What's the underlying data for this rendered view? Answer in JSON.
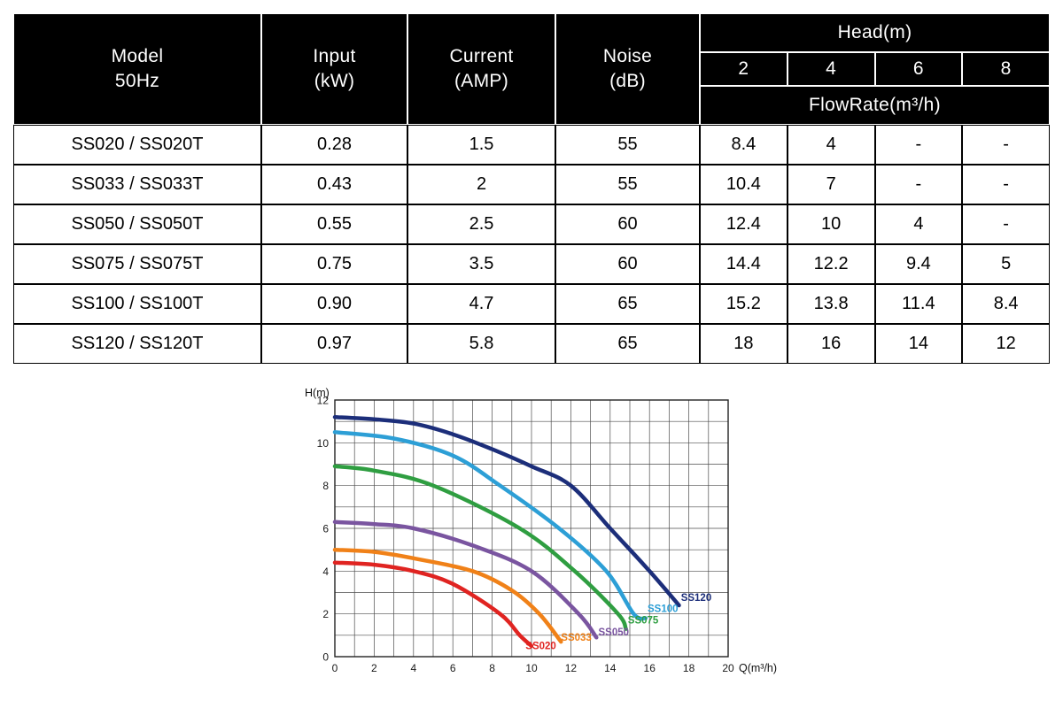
{
  "table": {
    "header": {
      "model_line1": "Model",
      "model_line2": "50Hz",
      "input_line1": "Input",
      "input_line2": "(kW)",
      "current_line1": "Current",
      "current_line2": "(AMP)",
      "noise_line1": "Noise",
      "noise_line2": "(dB)",
      "head_label": "Head(m)",
      "head_values": [
        "2",
        "4",
        "6",
        "8"
      ],
      "flowrate_label": "FlowRate(m³/h)"
    },
    "rows": [
      {
        "model": "SS020 / SS020T",
        "input_kw": "0.28",
        "current_amp": "1.5",
        "noise_db": "55",
        "flow_rates": [
          "8.4",
          "4",
          "-",
          "-"
        ]
      },
      {
        "model": "SS033 / SS033T",
        "input_kw": "0.43",
        "current_amp": "2",
        "noise_db": "55",
        "flow_rates": [
          "10.4",
          "7",
          "-",
          "-"
        ]
      },
      {
        "model": "SS050 / SS050T",
        "input_kw": "0.55",
        "current_amp": "2.5",
        "noise_db": "60",
        "flow_rates": [
          "12.4",
          "10",
          "4",
          "-"
        ]
      },
      {
        "model": "SS075 / SS075T",
        "input_kw": "0.75",
        "current_amp": "3.5",
        "noise_db": "60",
        "flow_rates": [
          "14.4",
          "12.2",
          "9.4",
          "5"
        ]
      },
      {
        "model": "SS100 / SS100T",
        "input_kw": "0.90",
        "current_amp": "4.7",
        "noise_db": "65",
        "flow_rates": [
          "15.2",
          "13.8",
          "11.4",
          "8.4"
        ]
      },
      {
        "model": "SS120 / SS120T",
        "input_kw": "0.97",
        "current_amp": "5.8",
        "noise_db": "65",
        "flow_rates": [
          "18",
          "16",
          "14",
          "12"
        ]
      }
    ]
  },
  "chart_data": {
    "type": "line",
    "title": "",
    "xlabel": "Q(m³/h)",
    "ylabel": "H(m)",
    "xlim": [
      0,
      20
    ],
    "ylim": [
      0,
      12
    ],
    "xticks": [
      0,
      2,
      4,
      6,
      8,
      10,
      12,
      14,
      16,
      18,
      20
    ],
    "yticks": [
      0,
      2,
      4,
      6,
      8,
      10,
      12
    ],
    "grid_step": 1,
    "grid": true,
    "legend_position": "curve-end-labels",
    "series": [
      {
        "name": "SS020",
        "color": "#e02421",
        "points": [
          [
            0,
            4.4
          ],
          [
            2,
            4.3
          ],
          [
            4,
            4.0
          ],
          [
            6,
            3.4
          ],
          [
            8.4,
            2.0
          ],
          [
            9.4,
            1.0
          ],
          [
            10,
            0.5
          ]
        ],
        "label_pos": [
          9.7,
          0.35
        ]
      },
      {
        "name": "SS033",
        "color": "#f08118",
        "points": [
          [
            0,
            5.0
          ],
          [
            2,
            4.9
          ],
          [
            4,
            4.6
          ],
          [
            7,
            4.0
          ],
          [
            9,
            3.1
          ],
          [
            10.4,
            2.0
          ],
          [
            11.5,
            0.7
          ]
        ],
        "label_pos": [
          11.5,
          0.75
        ]
      },
      {
        "name": "SS050",
        "color": "#7a55a0",
        "points": [
          [
            0,
            6.3
          ],
          [
            2,
            6.2
          ],
          [
            4,
            6.0
          ],
          [
            7,
            5.2
          ],
          [
            10,
            4.0
          ],
          [
            12.4,
            2.0
          ],
          [
            13.3,
            0.9
          ]
        ],
        "label_pos": [
          13.4,
          1.0
        ]
      },
      {
        "name": "SS075",
        "color": "#2f9e41",
        "points": [
          [
            0,
            8.9
          ],
          [
            2,
            8.7
          ],
          [
            5,
            8.0
          ],
          [
            9.4,
            6.0
          ],
          [
            12.2,
            4.0
          ],
          [
            14.4,
            2.0
          ],
          [
            14.8,
            1.3
          ]
        ],
        "label_pos": [
          14.9,
          1.55
        ]
      },
      {
        "name": "SS100",
        "color": "#2d9fd6",
        "points": [
          [
            0,
            10.5
          ],
          [
            3,
            10.2
          ],
          [
            6,
            9.4
          ],
          [
            8.4,
            8.0
          ],
          [
            11.4,
            6.0
          ],
          [
            13.8,
            4.0
          ],
          [
            15.2,
            2.0
          ],
          [
            15.8,
            1.8
          ]
        ],
        "label_pos": [
          15.9,
          2.1
        ]
      },
      {
        "name": "SS120",
        "color": "#1c2e7a",
        "points": [
          [
            0,
            11.2
          ],
          [
            2,
            11.1
          ],
          [
            4,
            10.9
          ],
          [
            6,
            10.4
          ],
          [
            8,
            9.7
          ],
          [
            10,
            8.9
          ],
          [
            12,
            8.0
          ],
          [
            14,
            6.0
          ],
          [
            16,
            4.0
          ],
          [
            17.5,
            2.4
          ]
        ],
        "label_pos": [
          17.6,
          2.6
        ]
      }
    ]
  }
}
